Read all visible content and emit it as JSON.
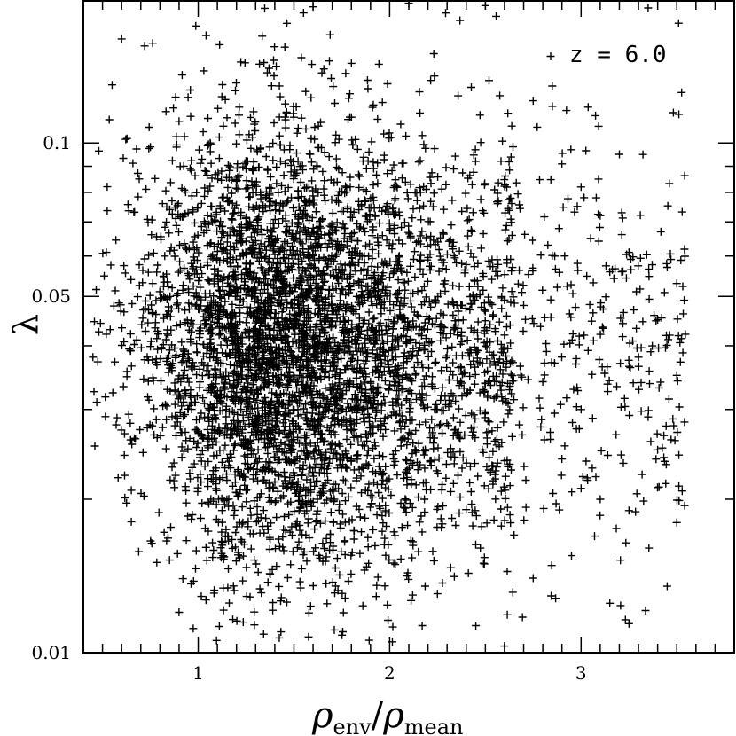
{
  "chart_data": {
    "type": "scatter",
    "marker": "plus",
    "color": "#000000",
    "scale": {
      "x": "linear",
      "y": "log"
    },
    "xlim": [
      0.4,
      3.8
    ],
    "ylim": [
      0.01,
      0.19
    ],
    "grid": false,
    "xticks": {
      "major": [
        1,
        2,
        3
      ],
      "labels": [
        "1",
        "2",
        "3"
      ]
    },
    "yticks": {
      "major": [
        0.01,
        0.05,
        0.1
      ],
      "labels": [
        "0.01",
        "0.05",
        "0.1"
      ]
    },
    "ylabel_symbol": "λ",
    "xlabel_parts": {
      "num": "ρ",
      "num_sub": "env",
      "slash": "/",
      "den": "ρ",
      "den_sub": "mean"
    },
    "annotation": "z = 6.0",
    "approx_point_count": 5000,
    "distribution": {
      "x_peak": 1.45,
      "x_range": [
        0.45,
        3.55
      ],
      "y_median": 0.04,
      "note": "dense cloud for 0.6 ≤ x ≤ 2.3, sparse tail to x ≈ 3.5"
    },
    "highlighted_points": [
      {
        "x": 0.45,
        "y": 0.038
      },
      {
        "x": 0.47,
        "y": 0.031
      },
      {
        "x": 0.52,
        "y": 0.061
      },
      {
        "x": 0.55,
        "y": 0.13
      },
      {
        "x": 0.6,
        "y": 0.16
      },
      {
        "x": 0.72,
        "y": 0.155
      },
      {
        "x": 0.9,
        "y": 0.012
      },
      {
        "x": 1.55,
        "y": 0.18
      },
      {
        "x": 1.6,
        "y": 0.185
      },
      {
        "x": 2.1,
        "y": 0.188
      },
      {
        "x": 2.5,
        "y": 0.186
      },
      {
        "x": 3.35,
        "y": 0.184
      },
      {
        "x": 2.45,
        "y": 0.0113
      },
      {
        "x": 2.6,
        "y": 0.0103
      },
      {
        "x": 3.25,
        "y": 0.0114
      },
      {
        "x": 3.15,
        "y": 0.0125
      },
      {
        "x": 3.4,
        "y": 0.025
      },
      {
        "x": 3.5,
        "y": 0.018
      },
      {
        "x": 3.5,
        "y": 0.053
      },
      {
        "x": 3.45,
        "y": 0.057
      },
      {
        "x": 3.25,
        "y": 0.061
      },
      {
        "x": 3.4,
        "y": 0.045
      },
      {
        "x": 3.3,
        "y": 0.038
      },
      {
        "x": 3.1,
        "y": 0.072
      },
      {
        "x": 3.0,
        "y": 0.082
      },
      {
        "x": 2.9,
        "y": 0.091
      },
      {
        "x": 2.75,
        "y": 0.121
      },
      {
        "x": 2.85,
        "y": 0.118
      },
      {
        "x": 3.2,
        "y": 0.095
      },
      {
        "x": 3.05,
        "y": 0.065
      },
      {
        "x": 2.7,
        "y": 0.048
      },
      {
        "x": 2.6,
        "y": 0.042
      },
      {
        "x": 2.8,
        "y": 0.034
      },
      {
        "x": 3.0,
        "y": 0.03
      },
      {
        "x": 2.9,
        "y": 0.024
      },
      {
        "x": 3.1,
        "y": 0.02
      },
      {
        "x": 3.35,
        "y": 0.029
      },
      {
        "x": 3.5,
        "y": 0.035
      },
      {
        "x": 2.55,
        "y": 0.026
      },
      {
        "x": 2.65,
        "y": 0.017
      },
      {
        "x": 2.95,
        "y": 0.0155
      },
      {
        "x": 2.75,
        "y": 0.014
      },
      {
        "x": 3.45,
        "y": 0.0135
      },
      {
        "x": 3.0,
        "y": 0.021
      },
      {
        "x": 3.25,
        "y": 0.019
      }
    ]
  }
}
